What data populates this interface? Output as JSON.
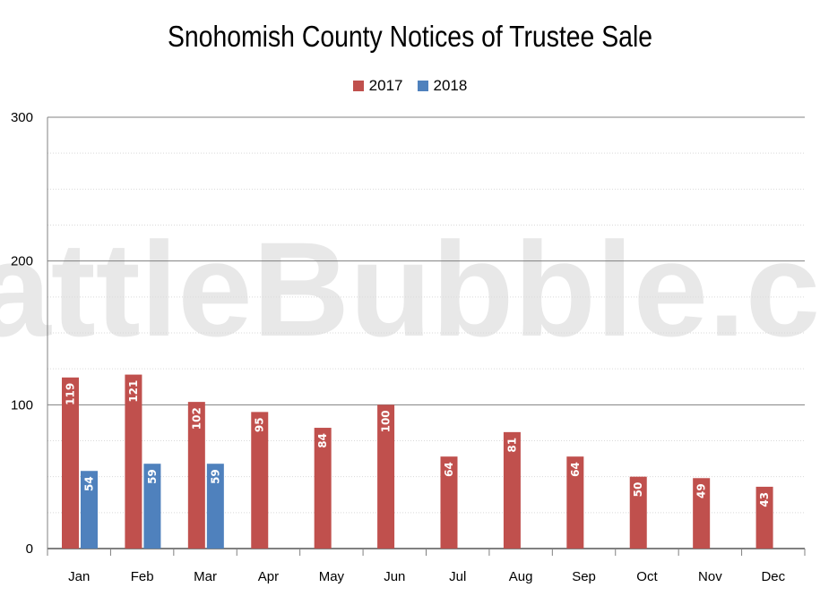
{
  "chart_data": {
    "type": "bar",
    "title": "Snohomish County Notices of Trustee Sale",
    "watermark": "SeattleBubble.com",
    "categories": [
      "Jan",
      "Feb",
      "Mar",
      "Apr",
      "May",
      "Jun",
      "Jul",
      "Aug",
      "Sep",
      "Oct",
      "Nov",
      "Dec"
    ],
    "series": [
      {
        "name": "2017",
        "color": "#c0504d",
        "values": [
          119,
          121,
          102,
          95,
          84,
          100,
          64,
          81,
          64,
          50,
          49,
          43
        ]
      },
      {
        "name": "2018",
        "color": "#4f81bd",
        "values": [
          54,
          59,
          59,
          null,
          null,
          null,
          null,
          null,
          null,
          null,
          null,
          null
        ]
      }
    ],
    "ylim": [
      0,
      300
    ],
    "yticks": [
      0,
      100,
      200,
      300
    ],
    "grid": true,
    "legend_position": "top-center",
    "xlabel": "",
    "ylabel": ""
  }
}
